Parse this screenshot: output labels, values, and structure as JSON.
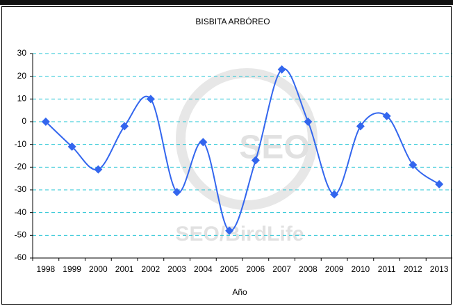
{
  "chart_data": {
    "type": "line",
    "title": "BISBITA ARBÓREO",
    "x_label": "Año",
    "categories": [
      "1998",
      "1999",
      "2000",
      "2001",
      "2002",
      "2003",
      "2004",
      "2005",
      "2006",
      "2007",
      "2008",
      "2009",
      "2010",
      "2011",
      "2012",
      "2013"
    ],
    "series": [
      {
        "name": "BISBITA ARBÓREO",
        "color": "#3366ee",
        "values": [
          0,
          -11,
          -21,
          -2,
          10,
          -31,
          -9,
          -48,
          -17,
          23,
          0,
          -32,
          -2,
          2.5,
          -19,
          -27.5
        ]
      }
    ],
    "ylim": [
      -60,
      30
    ],
    "yticks": [
      -60,
      -50,
      -40,
      -30,
      -20,
      -10,
      0,
      10,
      20,
      30
    ],
    "grid": true,
    "watermark": [
      "SEO",
      "SEO/BirdLife"
    ]
  }
}
